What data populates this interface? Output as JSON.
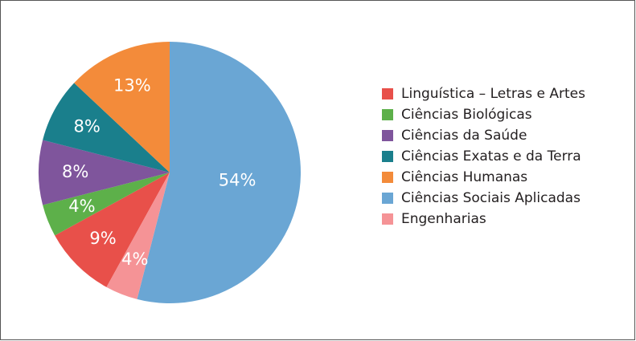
{
  "chart_data": {
    "type": "pie",
    "categories": [
      "Linguística – Letras e Artes",
      "Ciências Biológicas",
      "Ciências da Saúde",
      "Ciências Exatas e da Terra",
      "Ciências Humanas",
      "Ciências Sociais Aplicadas",
      "Engenharias"
    ],
    "values": [
      9,
      4,
      8,
      8,
      13,
      54,
      4
    ],
    "value_labels": [
      "9%",
      "4%",
      "8%",
      "8%",
      "13%",
      "54%",
      "4%"
    ],
    "colors": [
      "#e8504a",
      "#5db04a",
      "#7f559c",
      "#1a7f8c",
      "#f38b3a",
      "#6aa6d4",
      "#f59396"
    ],
    "legend": "right"
  }
}
